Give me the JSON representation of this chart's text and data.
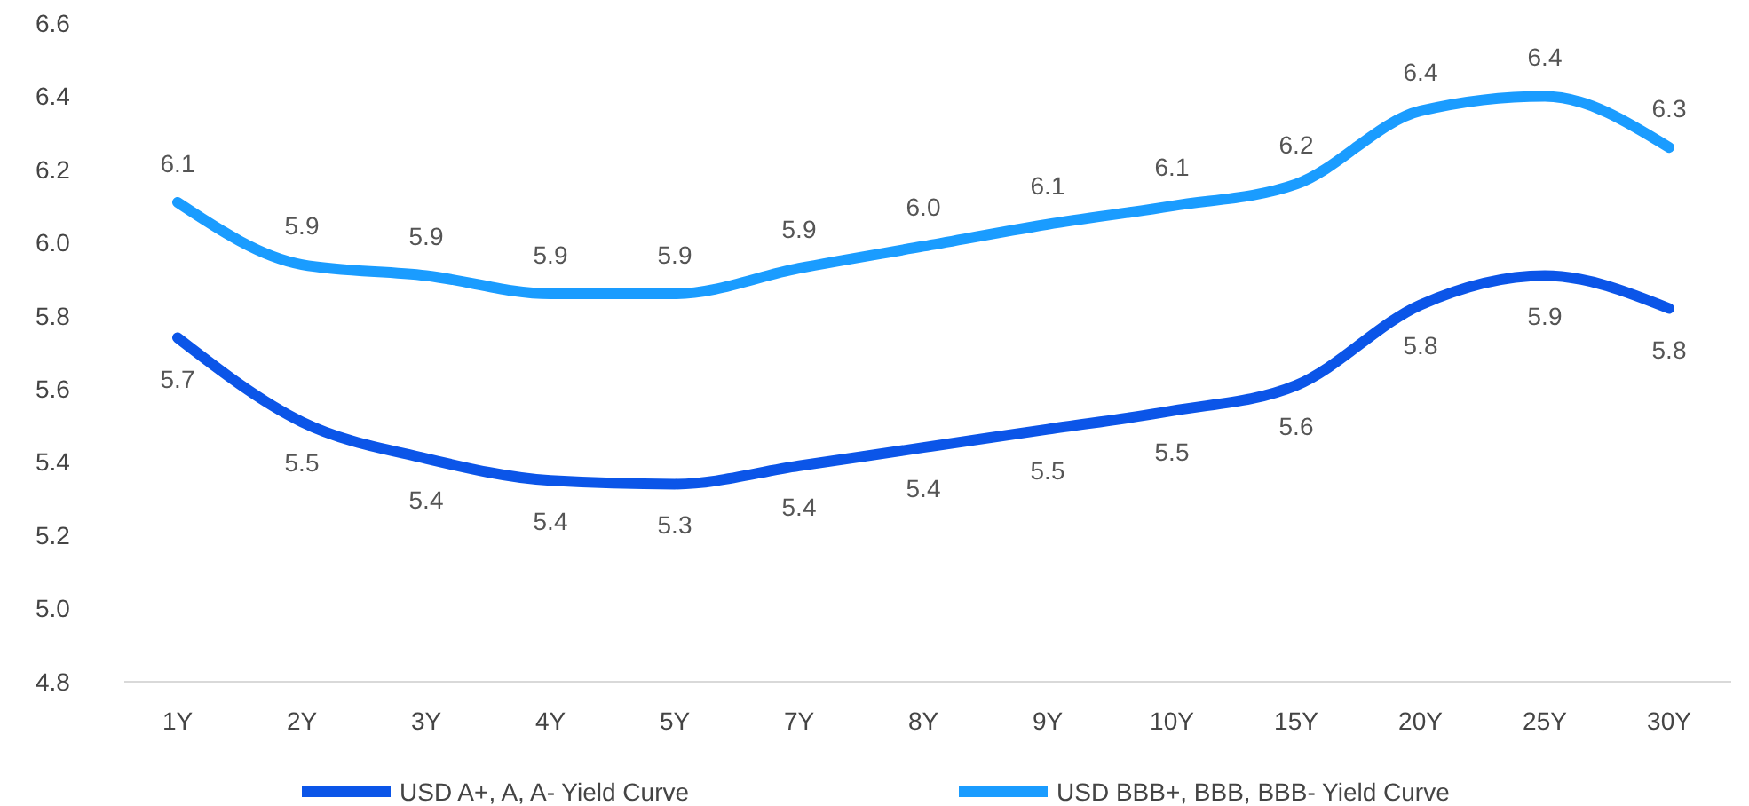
{
  "chart_data": {
    "type": "line",
    "categories": [
      "1Y",
      "2Y",
      "3Y",
      "4Y",
      "5Y",
      "7Y",
      "8Y",
      "9Y",
      "10Y",
      "15Y",
      "20Y",
      "25Y",
      "30Y"
    ],
    "series": [
      {
        "name": "USD A+, A, A- Yield Curve",
        "color": "#0b55e8",
        "values": [
          5.74,
          5.51,
          5.41,
          5.35,
          5.34,
          5.39,
          5.44,
          5.49,
          5.54,
          5.61,
          5.83,
          5.91,
          5.82
        ],
        "value_labels": [
          "5.7",
          "5.5",
          "5.4",
          "5.4",
          "5.3",
          "5.4",
          "5.4",
          "5.5",
          "5.5",
          "5.6",
          "5.8",
          "5.9",
          "5.8"
        ]
      },
      {
        "name": "USD BBB+, BBB, BBB- Yield Curve",
        "color": "#1a9cff",
        "values": [
          6.11,
          5.94,
          5.91,
          5.86,
          5.86,
          5.93,
          5.99,
          6.05,
          6.1,
          6.16,
          6.36,
          6.4,
          6.26
        ],
        "value_labels": [
          "6.1",
          "5.9",
          "5.9",
          "5.9",
          "5.9",
          "5.9",
          "6.0",
          "6.1",
          "6.1",
          "6.2",
          "6.4",
          "6.4",
          "6.3"
        ]
      }
    ],
    "ylim": [
      4.8,
      6.6
    ],
    "yticks": [
      4.8,
      {
        "value": 5,
        "label": "5.0"
      },
      5.2,
      5.4,
      5.6,
      5.8,
      {
        "value": 6,
        "label": "6.0"
      },
      6.2,
      6.4,
      6.6
    ],
    "grid": false,
    "legend": "bottom",
    "marker": "none",
    "line_style": "solid"
  }
}
